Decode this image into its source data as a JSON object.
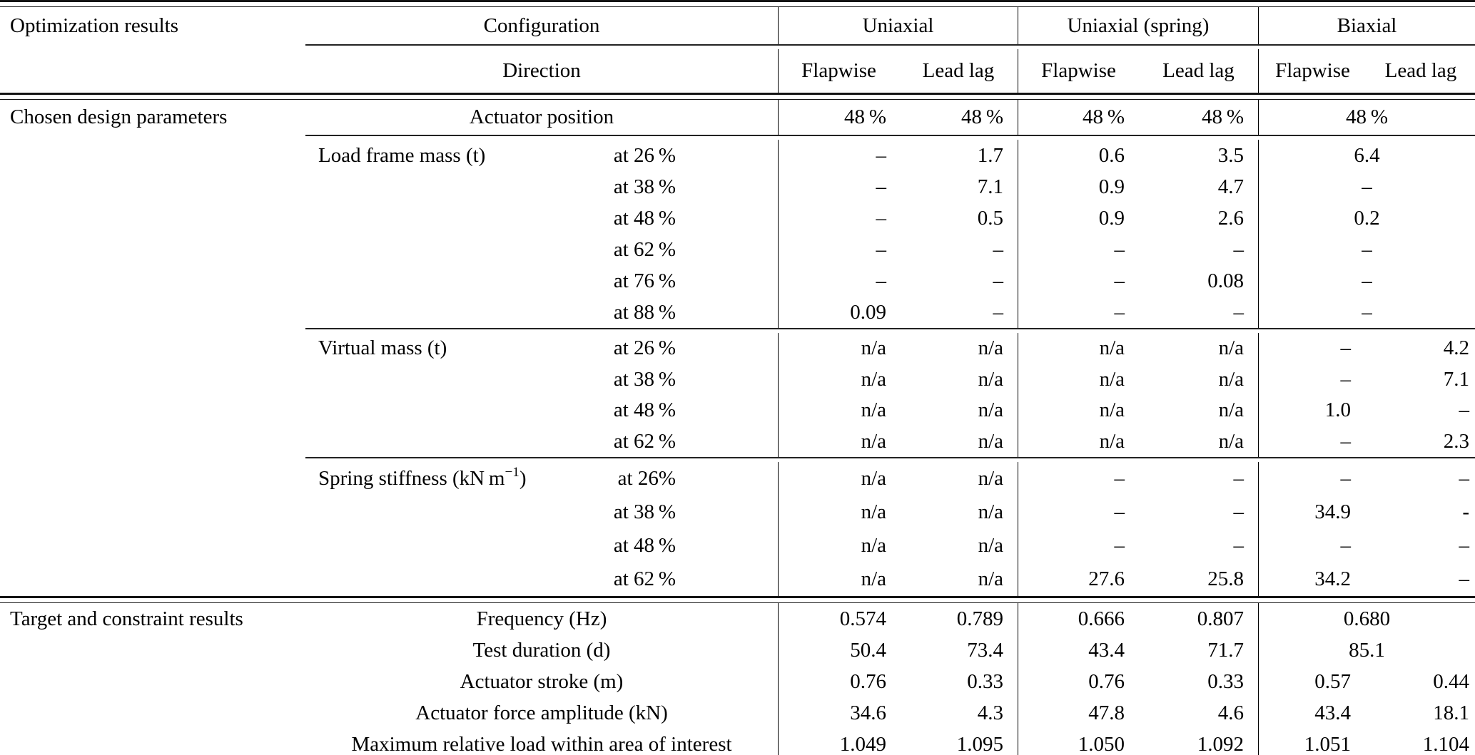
{
  "table": {
    "header": {
      "col1": "Optimization results",
      "config": "Configuration",
      "direction": "Direction",
      "groups": [
        "Uniaxial",
        "Uniaxial (spring)",
        "Biaxial"
      ],
      "directions": [
        "Flapwise",
        "Lead lag",
        "Flapwise",
        "Lead lag",
        "Flapwise",
        "Lead lag"
      ]
    },
    "body": [
      {
        "kind": "row",
        "block": "actuator-position",
        "section": "Chosen design parameters",
        "param_center": "Actuator position",
        "cells": [
          "48 %",
          "48 %",
          "48 %",
          "48 %",
          {
            "v": "48 %",
            "span": 2
          }
        ]
      },
      {
        "kind": "cmid"
      },
      {
        "kind": "row",
        "block": "load-frame-mass",
        "param": "Load frame mass (t)",
        "sub": "at 26 %",
        "cells": [
          "–",
          "1.7",
          "0.6",
          "3.5",
          {
            "v": "6.4",
            "span": 2
          }
        ]
      },
      {
        "kind": "row",
        "block": "load-frame-mass",
        "sub": "at 38 %",
        "cells": [
          "–",
          "7.1",
          "0.9",
          "4.7",
          {
            "v": "–",
            "span": 2
          }
        ]
      },
      {
        "kind": "row",
        "block": "load-frame-mass",
        "sub": "at 48 %",
        "cells": [
          "–",
          "0.5",
          "0.9",
          "2.6",
          {
            "v": "0.2",
            "span": 2
          }
        ]
      },
      {
        "kind": "row",
        "block": "load-frame-mass",
        "sub": "at 62 %",
        "cells": [
          "–",
          "–",
          "–",
          "–",
          {
            "v": "–",
            "span": 2
          }
        ]
      },
      {
        "kind": "row",
        "block": "load-frame-mass",
        "sub": "at 76 %",
        "cells": [
          "–",
          "–",
          "–",
          "0.08",
          {
            "v": "–",
            "span": 2
          }
        ]
      },
      {
        "kind": "row",
        "block": "load-frame-mass",
        "sub": "at 88 %",
        "cells": [
          "0.09",
          "–",
          "–",
          "–",
          {
            "v": "–",
            "span": 2
          }
        ]
      },
      {
        "kind": "cmid"
      },
      {
        "kind": "row",
        "block": "virtual-mass",
        "param": "Virtual mass (t)",
        "sub": "at 26 %",
        "cells": [
          "n/a",
          "n/a",
          "n/a",
          "n/a",
          "–",
          "4.2"
        ]
      },
      {
        "kind": "row",
        "block": "virtual-mass",
        "sub": "at 38 %",
        "cells": [
          "n/a",
          "n/a",
          "n/a",
          "n/a",
          "–",
          "7.1"
        ]
      },
      {
        "kind": "row",
        "block": "virtual-mass",
        "sub": "at 48 %",
        "cells": [
          "n/a",
          "n/a",
          "n/a",
          "n/a",
          "1.0",
          "–"
        ]
      },
      {
        "kind": "row",
        "block": "virtual-mass",
        "sub": "at 62 %",
        "cells": [
          "n/a",
          "n/a",
          "n/a",
          "n/a",
          "–",
          "2.3"
        ]
      },
      {
        "kind": "cmid"
      },
      {
        "kind": "row",
        "block": "spring-stiffness",
        "param": {
          "pre": "Spring stiffness (kN m",
          "sup": "−1",
          "post": ")"
        },
        "sub": "at 26%",
        "cells": [
          "n/a",
          "n/a",
          "–",
          "–",
          "–",
          "–"
        ]
      },
      {
        "kind": "row",
        "block": "spring-stiffness",
        "sub": "at 38 %",
        "cells": [
          "n/a",
          "n/a",
          "–",
          "–",
          "34.9",
          "-"
        ]
      },
      {
        "kind": "row",
        "block": "spring-stiffness",
        "sub": "at 48 %",
        "cells": [
          "n/a",
          "n/a",
          "–",
          "–",
          "–",
          "–"
        ]
      },
      {
        "kind": "row",
        "block": "spring-stiffness",
        "sub": "at 62 %",
        "cells": [
          "n/a",
          "n/a",
          "27.6",
          "25.8",
          "34.2",
          "–"
        ]
      },
      {
        "kind": "dbl"
      },
      {
        "kind": "row",
        "block": "results",
        "section": "Target and constraint results",
        "param_center": "Frequency (Hz)",
        "cells": [
          "0.574",
          "0.789",
          "0.666",
          "0.807",
          {
            "v": "0.680",
            "span": 2
          }
        ]
      },
      {
        "kind": "row",
        "block": "results",
        "param_center": "Test duration (d)",
        "cells": [
          "50.4",
          "73.4",
          "43.4",
          "71.7",
          {
            "v": "85.1",
            "span": 2
          }
        ]
      },
      {
        "kind": "row",
        "block": "results",
        "param_center": "Actuator stroke (m)",
        "cells": [
          "0.76",
          "0.33",
          "0.76",
          "0.33",
          "0.57",
          "0.44"
        ]
      },
      {
        "kind": "row",
        "block": "results",
        "param_center": "Actuator force amplitude (kN)",
        "cells": [
          "34.6",
          "4.3",
          "47.8",
          "4.6",
          "43.4",
          "18.1"
        ]
      },
      {
        "kind": "row",
        "block": "results",
        "param_center": "Maximum relative load within area of interest",
        "cells": [
          "1.049",
          "1.095",
          "1.050",
          "1.092",
          "1.051",
          "1.104"
        ]
      }
    ]
  }
}
